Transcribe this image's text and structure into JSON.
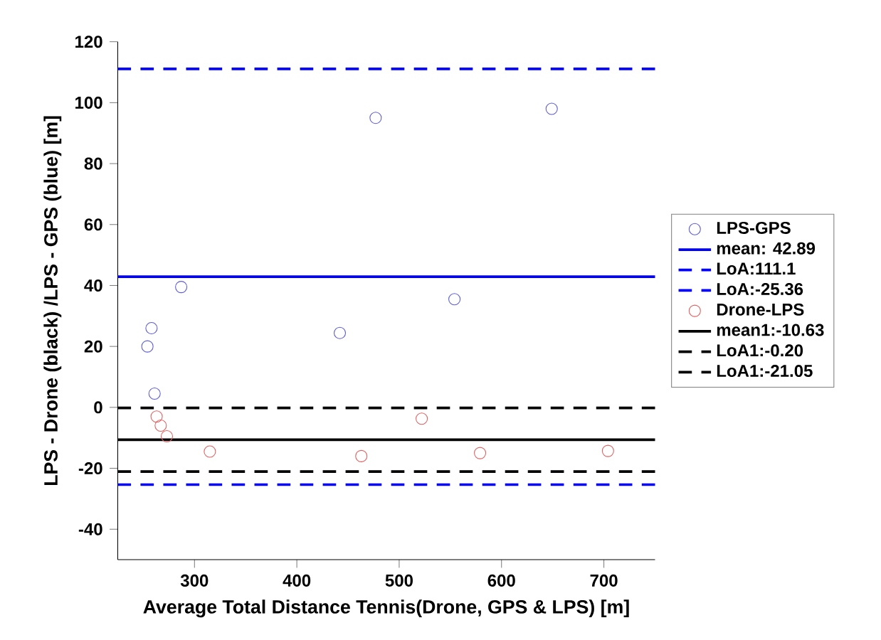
{
  "chart_data": {
    "type": "scatter",
    "xlabel": "Average Total Distance Tennis(Drone, GPS & LPS) [m]",
    "ylabel": "LPS - Drone (black) /LPS - GPS (blue) [m]",
    "xlim": [
      225,
      750
    ],
    "ylim": [
      -50,
      120
    ],
    "xticks": [
      300,
      400,
      500,
      600,
      700
    ],
    "yticks": [
      -40,
      -20,
      0,
      20,
      40,
      60,
      80,
      100,
      120
    ],
    "marker": "circle",
    "grid": false,
    "legend": "right",
    "series": [
      {
        "name": "LPS-GPS",
        "color": "#5b5bd6",
        "x": [
          254,
          258,
          261,
          287,
          442,
          477,
          554,
          649
        ],
        "values": [
          20,
          26,
          4.5,
          39.5,
          24.4,
          95,
          35.5,
          98
        ]
      },
      {
        "name": "Drone-LPS",
        "color": "#e06060",
        "x": [
          263,
          267,
          273,
          315,
          463,
          522,
          579,
          704
        ],
        "values": [
          -3,
          -6,
          -9.5,
          -14.5,
          -16,
          -3.7,
          -15,
          -14.3
        ]
      }
    ],
    "ref_lines": [
      {
        "axis": "y",
        "value": 42.89,
        "label": "mean: 42.89",
        "color": "#0000ff",
        "line_style": "solid"
      },
      {
        "axis": "y",
        "value": 111.1,
        "label": "LoA:111.1",
        "color": "#0000ff",
        "line_style": "dashed"
      },
      {
        "axis": "y",
        "value": -25.36,
        "label": "LoA:-25.36",
        "color": "#0000ff",
        "line_style": "dashed"
      },
      {
        "axis": "y",
        "value": -10.63,
        "label": "mean1:-10.63",
        "color": "#000000",
        "line_style": "solid"
      },
      {
        "axis": "y",
        "value": -0.2,
        "label": "LoA1:-0.20",
        "color": "#000000",
        "line_style": "dashed"
      },
      {
        "axis": "y",
        "value": -21.05,
        "label": "LoA1:-21.05",
        "color": "#000000",
        "line_style": "dashed"
      }
    ]
  }
}
